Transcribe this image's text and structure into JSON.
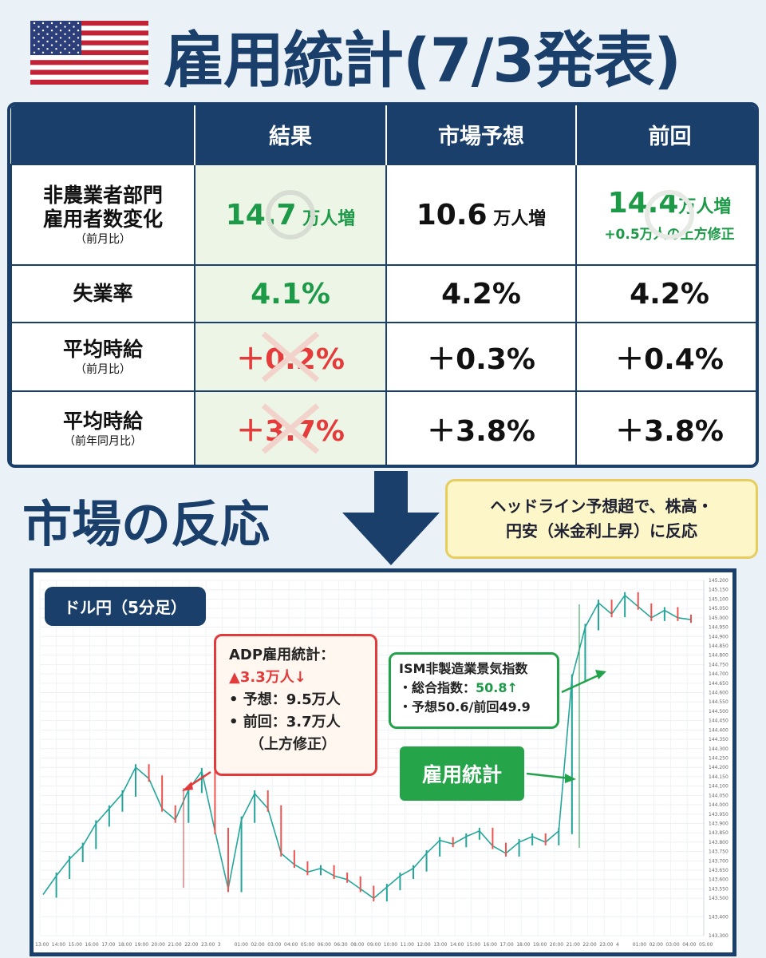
{
  "header": {
    "title": "雇用統計(7/3発表)",
    "flag_icon": "us-flag-icon"
  },
  "table": {
    "columns": [
      "",
      "結果",
      "市場予想",
      "前回"
    ],
    "rows": [
      {
        "label": "非農業者部門",
        "label2": "雇用者数変化",
        "sub": "（前月比）",
        "result_value": "14.7",
        "result_unit": " 万人増",
        "forecast_value": "10.6",
        "forecast_unit": " 万人増",
        "previous_value": "14.4",
        "previous_unit": "万人増",
        "previous_note": "+0.5万人の上方修正"
      },
      {
        "label": "失業率",
        "result_value": "4.1%",
        "forecast_value": "4.2%",
        "previous_value": "4.2%"
      },
      {
        "label": "平均時給",
        "sub": "（前月比）",
        "result_value": "＋0.2%",
        "forecast_value": "＋0.3%",
        "previous_value": "＋0.4%"
      },
      {
        "label": "平均時給",
        "sub": "（前年同月比）",
        "result_value": "＋3.7%",
        "forecast_value": "＋3.8%",
        "previous_value": "＋3.8%"
      }
    ],
    "colors": {
      "header_bg": "#1b3f6b",
      "good": "#1c9a48",
      "bad": "#e63b3b",
      "result_bg": "#edf6e6"
    }
  },
  "reaction": {
    "heading": "市場の反応",
    "note_line1": "ヘッドライン予想超で、株高・",
    "note_line2": "円安（米金利上昇）に反応"
  },
  "chart_labels": {
    "pair": "ドル円（5分足）",
    "adp_title": "ADP雇用統計：",
    "adp_value": "▲3.3万人↓",
    "adp_forecast": "•  予想：9.5万人",
    "adp_previous": "•  前回：3.7万人",
    "adp_revision": "（上方修正）",
    "ism_title": "ISM非製造業景気指数",
    "ism_total_label": "・総合指数：",
    "ism_total_value": "50.8↑",
    "ism_forecast": "・予想50.6/前回49.9",
    "nfp_tag": "雇用統計"
  },
  "chart_data": {
    "type": "line",
    "title": "ドル円（5分足）",
    "xlabel": "",
    "ylabel": "",
    "ylim": [
      143.3,
      145.2
    ],
    "grid": true,
    "x_ticks": [
      "13:00",
      "14:00",
      "15:00",
      "16:00",
      "17:00",
      "18:00",
      "19:00",
      "20:00",
      "21:00",
      "22:00",
      "23:00",
      "3",
      "01:00",
      "02:00",
      "03:00",
      "04:00",
      "05:00",
      "06:00",
      "06:30",
      "08:00",
      "09:00",
      "10:00",
      "11:00",
      "12:00",
      "13:00",
      "14:00",
      "15:00",
      "16:00",
      "17:00",
      "18:00",
      "19:00",
      "20:00",
      "21:00",
      "22:00",
      "23:00",
      "4",
      "01:00",
      "02:00",
      "03:00",
      "04:00",
      "05:00"
    ],
    "y_ticks": [
      143.3,
      143.4,
      143.5,
      143.55,
      143.6,
      143.65,
      143.7,
      143.75,
      143.8,
      143.85,
      143.9,
      143.95,
      144.0,
      144.05,
      144.1,
      144.15,
      144.2,
      144.25,
      144.3,
      144.35,
      144.4,
      144.45,
      144.5,
      144.55,
      144.6,
      144.65,
      144.7,
      144.75,
      144.8,
      144.85,
      144.9,
      144.95,
      145.0,
      145.05,
      145.1,
      145.15,
      145.2
    ],
    "series": [
      {
        "values": [
          143.52,
          143.62,
          143.71,
          143.78,
          143.9,
          143.98,
          144.06,
          144.2,
          144.14,
          143.98,
          143.92,
          144.08,
          144.18,
          143.86,
          143.55,
          143.92,
          144.06,
          143.98,
          143.74,
          143.68,
          143.64,
          143.66,
          143.62,
          143.6,
          143.55,
          143.5,
          143.56,
          143.62,
          143.66,
          143.74,
          143.81,
          143.79,
          143.83,
          143.86,
          143.78,
          143.74,
          143.8,
          143.83,
          143.8,
          143.86,
          144.68,
          144.95,
          145.08,
          145.02,
          145.12,
          145.06,
          145.0,
          145.04,
          145.0,
          144.99
        ]
      }
    ],
    "annotations": [
      {
        "at": "21:15",
        "label": "ADP雇用統計"
      },
      {
        "at": "21:30",
        "label": "雇用統計"
      },
      {
        "at": "23:00",
        "label": "ISM非製造業景気指数"
      }
    ]
  }
}
